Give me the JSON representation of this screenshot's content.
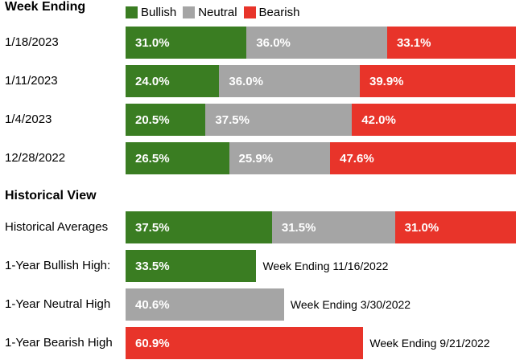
{
  "colors": {
    "bullish": "#3a7d22",
    "neutral": "#a5a5a5",
    "bearish": "#e8342a"
  },
  "week_section_title": "Week Ending",
  "hist_section_title": "Historical View",
  "legend": [
    {
      "name": "Bullish",
      "color_key": "bullish"
    },
    {
      "name": "Neutral",
      "color_key": "neutral"
    },
    {
      "name": "Bearish",
      "color_key": "bearish"
    }
  ],
  "chart_data": [
    {
      "type": "bar",
      "title": "Week Ending",
      "stacked": true,
      "orientation": "horizontal",
      "legend_placement": "top",
      "categories": [
        "1/18/2023",
        "1/11/2023",
        "1/4/2023",
        "12/28/2022"
      ],
      "series": [
        {
          "name": "Bullish",
          "values": [
            31.0,
            24.0,
            20.5,
            26.5
          ],
          "labels": [
            "31.0%",
            "24.0%",
            "20.5%",
            "26.5%"
          ]
        },
        {
          "name": "Neutral",
          "values": [
            36.0,
            36.0,
            37.5,
            25.9
          ],
          "labels": [
            "36.0%",
            "36.0%",
            "37.5%",
            "25.9%"
          ]
        },
        {
          "name": "Bearish",
          "values": [
            33.1,
            39.9,
            42.0,
            47.6
          ],
          "labels": [
            "33.1%",
            "39.9%",
            "42.0%",
            "47.6%"
          ]
        }
      ]
    },
    {
      "type": "bar",
      "title": "Historical View",
      "stacked": true,
      "orientation": "horizontal",
      "categories": [
        "Historical Averages"
      ],
      "series": [
        {
          "name": "Bullish",
          "values": [
            37.5
          ],
          "labels": [
            "37.5%"
          ]
        },
        {
          "name": "Neutral",
          "values": [
            31.5
          ],
          "labels": [
            "31.5%"
          ]
        },
        {
          "name": "Bearish",
          "values": [
            31.0
          ],
          "labels": [
            "31.0%"
          ]
        }
      ]
    },
    {
      "type": "bar",
      "orientation": "horizontal",
      "categories": [
        "1-Year Bullish High:",
        "1-Year Neutral High",
        "1-Year Bearish High"
      ],
      "values": [
        33.5,
        40.6,
        60.9
      ],
      "labels": [
        "33.5%",
        "40.6%",
        "60.9%"
      ],
      "series_keys": [
        "bullish",
        "neutral",
        "bearish"
      ],
      "annotations": [
        "Week Ending 11/16/2022",
        "Week Ending 3/30/2022",
        "Week Ending 9/21/2022"
      ]
    }
  ]
}
